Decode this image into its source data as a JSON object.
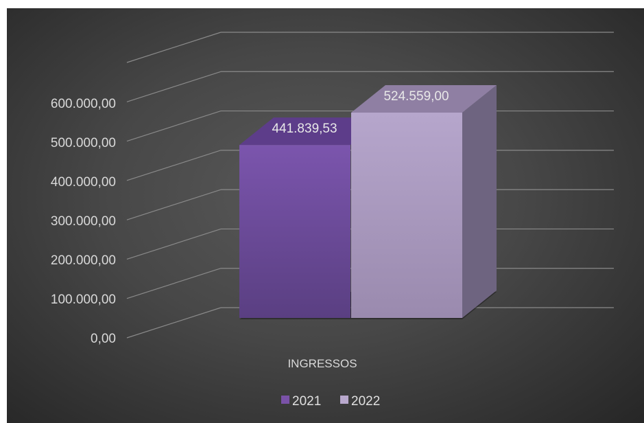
{
  "chart_data": {
    "type": "bar",
    "categories": [
      "INGRESSOS"
    ],
    "series": [
      {
        "name": "2021",
        "values": [
          441839.53
        ],
        "color": "#7a52a8"
      },
      {
        "name": "2022",
        "values": [
          524559.0
        ],
        "color": "#b8a8cc"
      }
    ],
    "data_labels": [
      "441.839,53",
      "524.559,00"
    ],
    "y_ticks": [
      "0,00",
      "100.000,00",
      "200.000,00",
      "300.000,00",
      "400.000,00",
      "500.000,00",
      "600.000,00"
    ],
    "ylim": [
      0,
      700000
    ],
    "grid": true,
    "legend_position": "bottom",
    "background": "#3f3f3f",
    "three_d": true
  }
}
